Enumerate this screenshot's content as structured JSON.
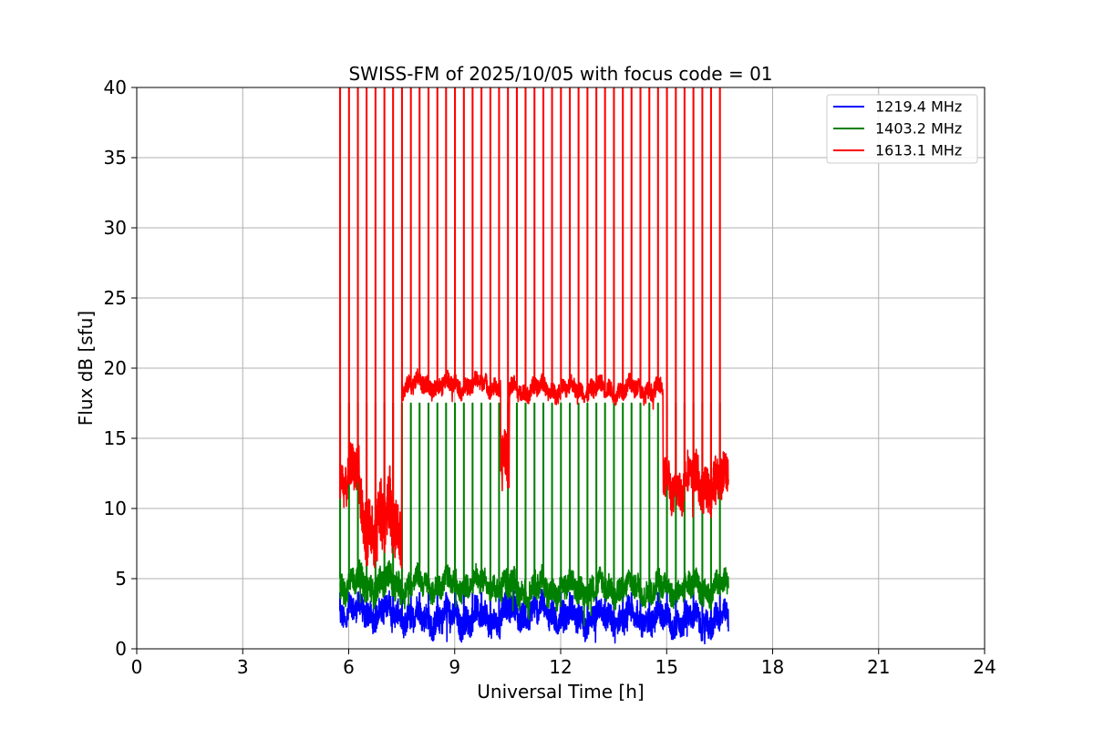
{
  "chart_data": {
    "type": "line",
    "title": "SWISS-FM of 2025/10/05 with focus code = 01",
    "xlabel": "Universal Time [h]",
    "ylabel": "Flux dB [sfu]",
    "xlim": [
      0,
      24
    ],
    "ylim": [
      0,
      40
    ],
    "xticks": [
      "0",
      "3",
      "6",
      "9",
      "12",
      "15",
      "18",
      "21",
      "24"
    ],
    "yticks": [
      "0",
      "5",
      "10",
      "15",
      "20",
      "25",
      "30",
      "35",
      "40"
    ],
    "grid": true,
    "legend_position": "top-right",
    "series": [
      {
        "name": "1219.4 MHz",
        "color": "#0000ff",
        "time_range_h": [
          5.75,
          16.75
        ],
        "segments": [
          {
            "from": 5.75,
            "to": 7.5,
            "level": 2.6,
            "noise": 1.3
          },
          {
            "from": 7.5,
            "to": 10.3,
            "level": 2.2,
            "noise": 1.4
          },
          {
            "from": 10.3,
            "to": 12.0,
            "level": 2.6,
            "noise": 1.4
          },
          {
            "from": 12.0,
            "to": 14.9,
            "level": 2.2,
            "noise": 1.4
          },
          {
            "from": 14.9,
            "to": 16.75,
            "level": 2.0,
            "noise": 1.3
          }
        ],
        "spike_peaks": 4
      },
      {
        "name": "1403.2 MHz",
        "color": "#008000",
        "time_range_h": [
          5.75,
          16.75
        ],
        "segments": [
          {
            "from": 5.75,
            "to": 7.5,
            "level": 4.6,
            "noise": 1.4
          },
          {
            "from": 7.5,
            "to": 10.3,
            "level": 4.6,
            "noise": 1.2
          },
          {
            "from": 10.3,
            "to": 12.0,
            "level": 4.3,
            "noise": 1.4
          },
          {
            "from": 12.0,
            "to": 14.9,
            "level": 4.3,
            "noise": 1.3
          },
          {
            "from": 14.9,
            "to": 16.75,
            "level": 4.3,
            "noise": 1.3
          }
        ],
        "spike_peaks": 17.5
      },
      {
        "name": "1613.1 MHz",
        "color": "#ff0000",
        "time_range_h": [
          5.75,
          16.75
        ],
        "segments": [
          {
            "from": 5.75,
            "to": 6.3,
            "level": 12.5,
            "noise": 2.2
          },
          {
            "from": 6.3,
            "to": 7.5,
            "level": 9.0,
            "noise": 3.5
          },
          {
            "from": 7.5,
            "to": 10.3,
            "level": 18.8,
            "noise": 0.9
          },
          {
            "from": 10.3,
            "to": 10.55,
            "level": 13.0,
            "noise": 3.0
          },
          {
            "from": 10.55,
            "to": 14.9,
            "level": 18.5,
            "noise": 0.9
          },
          {
            "from": 14.9,
            "to": 16.75,
            "level": 11.8,
            "noise": 2.2
          }
        ],
        "spike_peaks": 40
      }
    ],
    "spike_times_h": [
      5.75,
      6.0,
      6.25,
      6.5,
      6.75,
      7.0,
      7.25,
      7.5,
      7.75,
      8.0,
      8.25,
      8.5,
      8.75,
      9.0,
      9.25,
      9.5,
      9.75,
      10.0,
      10.25,
      10.5,
      10.75,
      11.0,
      11.25,
      11.5,
      11.75,
      12.0,
      12.25,
      12.5,
      12.75,
      13.0,
      13.25,
      13.5,
      13.75,
      14.0,
      14.25,
      14.5,
      14.75,
      15.0,
      15.25,
      15.5,
      15.75,
      16.0,
      16.25,
      16.5
    ]
  }
}
